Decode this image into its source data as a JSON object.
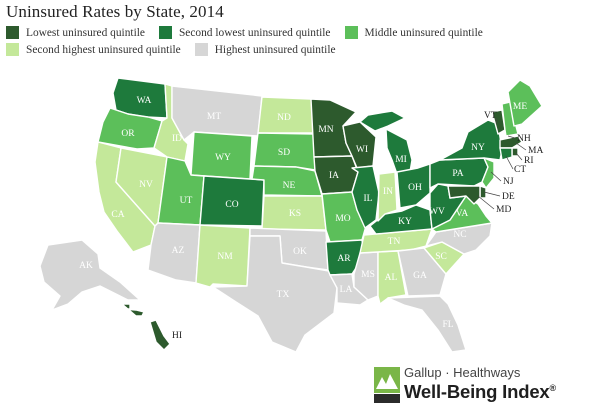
{
  "title": "Uninsured Rates by State, 2014",
  "legend": [
    {
      "key": "q1",
      "label": "Lowest uninsured quintile",
      "color": "#2d5a2d"
    },
    {
      "key": "q2",
      "label": "Second lowest uninsured quintile",
      "color": "#1e7a3c"
    },
    {
      "key": "q3",
      "label": "Middle uninsured quintile",
      "color": "#5cbf5a"
    },
    {
      "key": "q4",
      "label": "Second highest uninsured quintile",
      "color": "#c4e89a"
    },
    {
      "key": "q5",
      "label": "Highest uninsured quintile",
      "color": "#d6d6d6"
    }
  ],
  "states": {
    "WA": "q2",
    "OR": "q3",
    "CA": "q4",
    "NV": "q4",
    "ID": "q4",
    "MT": "q5",
    "WY": "q3",
    "UT": "q3",
    "AZ": "q5",
    "CO": "q2",
    "NM": "q4",
    "ND": "q4",
    "SD": "q3",
    "NE": "q3",
    "KS": "q4",
    "OK": "q5",
    "TX": "q5",
    "MN": "q1",
    "IA": "q1",
    "MO": "q3",
    "AR": "q2",
    "LA": "q5",
    "WI": "q1",
    "IL": "q2",
    "MS": "q5",
    "AL": "q4",
    "TN": "q4",
    "KY": "q2",
    "IN": "q4",
    "MI": "q2",
    "OH": "q2",
    "GA": "q5",
    "FL": "q5",
    "SC": "q4",
    "NC": "q5",
    "VA": "q3",
    "WV": "q2",
    "PA": "q2",
    "NY": "q2",
    "VT": "q1",
    "NH": "q3",
    "ME": "q3",
    "MA": "q1",
    "RI": "q1",
    "CT": "q2",
    "NJ": "q3",
    "DE": "q1",
    "MD": "q1",
    "AK": "q5",
    "HI": "q1"
  },
  "labels": {
    "WA": "WA",
    "OR": "OR",
    "CA": "CA",
    "NV": "NV",
    "ID": "ID",
    "MT": "MT",
    "WY": "WY",
    "UT": "UT",
    "AZ": "AZ",
    "CO": "CO",
    "NM": "NM",
    "ND": "ND",
    "SD": "SD",
    "NE": "NE",
    "KS": "KS",
    "OK": "OK",
    "TX": "TX",
    "MN": "MN",
    "IA": "IA",
    "MO": "MO",
    "AR": "AR",
    "LA": "LA",
    "WI": "WI",
    "IL": "IL",
    "MS": "MS",
    "AL": "AL",
    "TN": "TN",
    "KY": "KY",
    "IN": "IN",
    "MI": "MI",
    "OH": "OH",
    "GA": "GA",
    "FL": "FL",
    "SC": "SC",
    "NC": "NC",
    "VA": "VA",
    "WV": "WV",
    "PA": "PA",
    "NY": "NY",
    "VT": "VT",
    "NH": "NH",
    "ME": "ME",
    "MA": "MA",
    "RI": "RI",
    "CT": "CT",
    "NJ": "NJ",
    "DE": "DE",
    "MD": "MD",
    "AK": "AK",
    "HI": "HI"
  },
  "logo": {
    "top": "Gallup · Healthways",
    "main": "Well-Being Index",
    "mark": "®"
  }
}
